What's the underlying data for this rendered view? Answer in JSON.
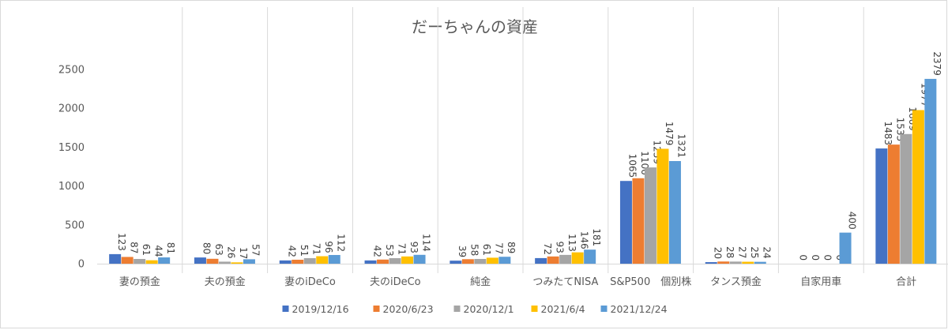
{
  "chart_data": {
    "type": "bar",
    "title": "だーちゃんの資産",
    "xlabel": "",
    "ylabel": "",
    "ylim": [
      0,
      2500
    ],
    "yticks": [
      0,
      500,
      1000,
      1500,
      2000,
      2500
    ],
    "grid": "vertical category separators",
    "legend_position": "bottom",
    "categories": [
      "妻の預金",
      "夫の預金",
      "妻のiDeCo",
      "夫のiDeCo",
      "純金",
      "つみたてNISA",
      "S&P500　個別株",
      "タンス預金",
      "自家用車",
      "合計"
    ],
    "series": [
      {
        "name": "2019/12/16",
        "color": "#4472c4",
        "values": [
          123,
          80,
          42,
          42,
          39,
          72,
          1065,
          20,
          0,
          1483
        ]
      },
      {
        "name": "2020/6/23",
        "color": "#ed7d31",
        "values": [
          87,
          63,
          51,
          53,
          58,
          93,
          1100,
          28,
          0,
          1533
        ]
      },
      {
        "name": "2020/12/1",
        "color": "#a5a5a5",
        "values": [
          61,
          26,
          71,
          71,
          61,
          113,
          1239,
          27,
          0,
          1669
        ]
      },
      {
        "name": "2021/6/4",
        "color": "#ffc000",
        "values": [
          44,
          17,
          96,
          93,
          77,
          146,
          1479,
          25,
          0,
          1977
        ]
      },
      {
        "name": "2021/12/24",
        "color": "#5b9bd5",
        "values": [
          81,
          57,
          112,
          114,
          89,
          181,
          1321,
          24,
          400,
          2379
        ]
      }
    ]
  }
}
